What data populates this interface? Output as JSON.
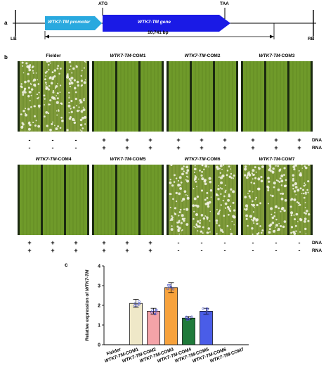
{
  "panel_labels": {
    "a": "a",
    "b": "b",
    "c": "c"
  },
  "construct": {
    "lb": "LB",
    "rb": "RB",
    "promoter": "WTK7-TM promoter",
    "gene": "WTK7-TM gene",
    "start_codon": "ATG",
    "stop_codon": "TAA",
    "length": "10,741 bp",
    "colors": {
      "promoter": "#29a9df",
      "gene": "#1a1ae6"
    }
  },
  "row_labels": {
    "dna": "DNA",
    "rna": "RNA"
  },
  "leaf_panels": [
    {
      "prefix": "",
      "suffix": "Fielder",
      "infected": true,
      "dna": [
        "-",
        "-",
        "-"
      ],
      "rna": [
        "-",
        "-",
        "-"
      ]
    },
    {
      "prefix": "WTK7-TM",
      "suffix": "-COM1",
      "infected": false,
      "dna": [
        "+",
        "+",
        "+"
      ],
      "rna": [
        "+",
        "+",
        "+"
      ]
    },
    {
      "prefix": "WTK7-TM",
      "suffix": "-COM2",
      "infected": false,
      "dna": [
        "+",
        "+",
        "+"
      ],
      "rna": [
        "+",
        "+",
        "+"
      ]
    },
    {
      "prefix": "WTK7-TM",
      "suffix": "-COM3",
      "infected": false,
      "dna": [
        "+",
        "+",
        "+"
      ],
      "rna": [
        "+",
        "+",
        "+"
      ]
    },
    {
      "prefix": "WTK7-TM",
      "suffix": "-COM4",
      "infected": false,
      "dna": [
        "+",
        "+",
        "+"
      ],
      "rna": [
        "+",
        "+",
        "+"
      ]
    },
    {
      "prefix": "WTK7-TM",
      "suffix": "-COM5",
      "infected": false,
      "dna": [
        "+",
        "+",
        "+"
      ],
      "rna": [
        "+",
        "+",
        "+"
      ]
    },
    {
      "prefix": "WTK7-TM",
      "suffix": "-COM6",
      "infected": true,
      "dna": [
        "-",
        "-",
        "-"
      ],
      "rna": [
        "-",
        "-",
        "-"
      ]
    },
    {
      "prefix": "WTK7-TM",
      "suffix": "-COM7",
      "infected": true,
      "dna": [
        "-",
        "-",
        "-"
      ],
      "rna": [
        "-",
        "-",
        "-"
      ]
    }
  ],
  "chart_data": {
    "type": "bar",
    "categories": [
      "Fielder",
      "WTK7-TM-COM1",
      "WTK7-TM-COM2",
      "WTK7-TM-COM3",
      "WTK7-TM-COM4",
      "WTK7-TM-COM5",
      "WTK7-TM-COM6",
      "WTK7-TM-COM7"
    ],
    "values": [
      0,
      2.1,
      1.7,
      2.9,
      1.35,
      1.7,
      0,
      0
    ],
    "errors": [
      0,
      0.2,
      0.15,
      0.25,
      0.08,
      0.15,
      0,
      0
    ],
    "colors": [
      "#ffffff",
      "#efe8c8",
      "#f4a3a8",
      "#f7a23c",
      "#1f7a3a",
      "#4a5de8",
      "#ffffff",
      "#ffffff"
    ],
    "ylabel_prefix": "Relative expression of ",
    "ylabel_gene": "WTK7-TM",
    "ylim": [
      0,
      4
    ],
    "yticks": [
      "0",
      "1",
      "2",
      "3",
      "4"
    ]
  }
}
